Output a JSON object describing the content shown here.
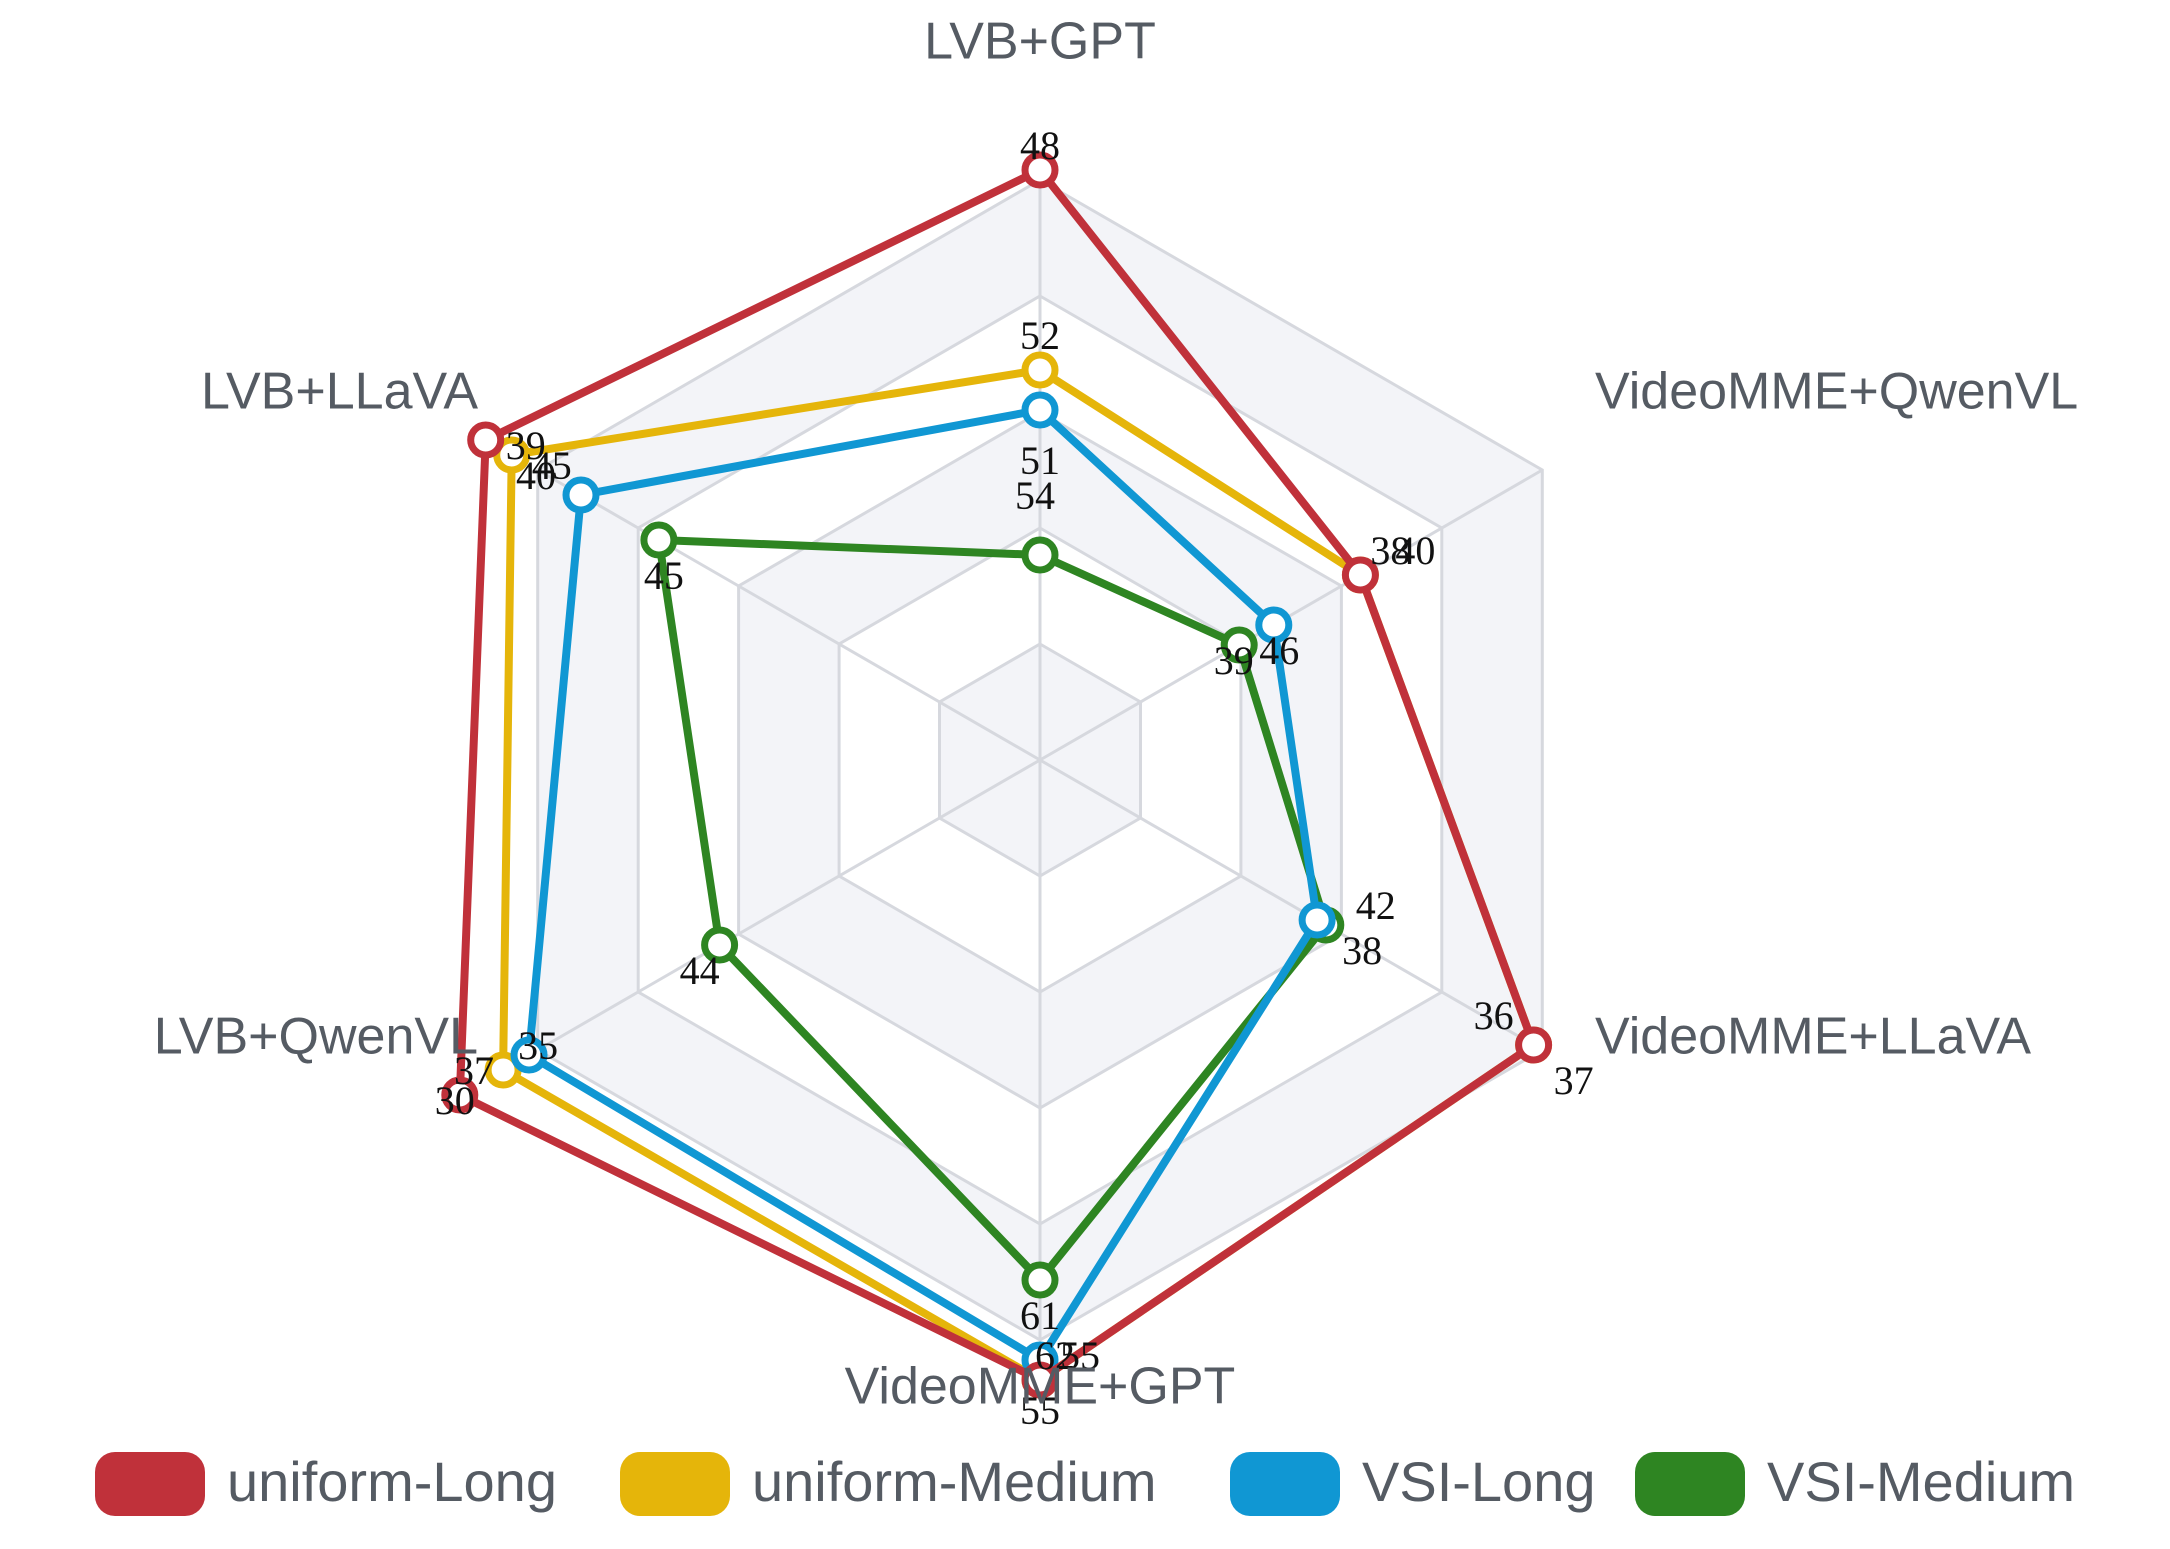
{
  "chart_data": {
    "type": "radar",
    "axes": [
      "LVB+GPT",
      "VideoMME+QwenVL",
      "VideoMME+LLaVA",
      "VideoMME+GPT",
      "LVB+QwenVL",
      "LVB+LLaVA"
    ],
    "legend_position": "bottom",
    "grid": true,
    "series": [
      {
        "name": "uniform-Long",
        "color": "#c0313a",
        "values": [
          48,
          38,
          36,
          55,
          30,
          39
        ],
        "labels": [
          "48",
          "38",
          "36",
          "55",
          "30",
          "39"
        ]
      },
      {
        "name": "uniform-Medium",
        "color": "#e5b50a",
        "values": [
          52,
          40,
          37,
          61,
          35,
          45
        ],
        "labels": [
          "52",
          "40",
          "37",
          "61",
          "35",
          "45"
        ]
      },
      {
        "name": "VSI-Long",
        "color": "#1097d3",
        "values": [
          51,
          39,
          38,
          55,
          37,
          40
        ],
        "labels": [
          "51",
          "39",
          "38",
          "55",
          "37",
          "40"
        ]
      },
      {
        "name": "VSI-Medium",
        "color": "#2e8522",
        "values": [
          54,
          46,
          42,
          62,
          44,
          45
        ],
        "labels": [
          "54",
          "46",
          "42",
          "62",
          "44",
          "45"
        ]
      }
    ]
  }
}
